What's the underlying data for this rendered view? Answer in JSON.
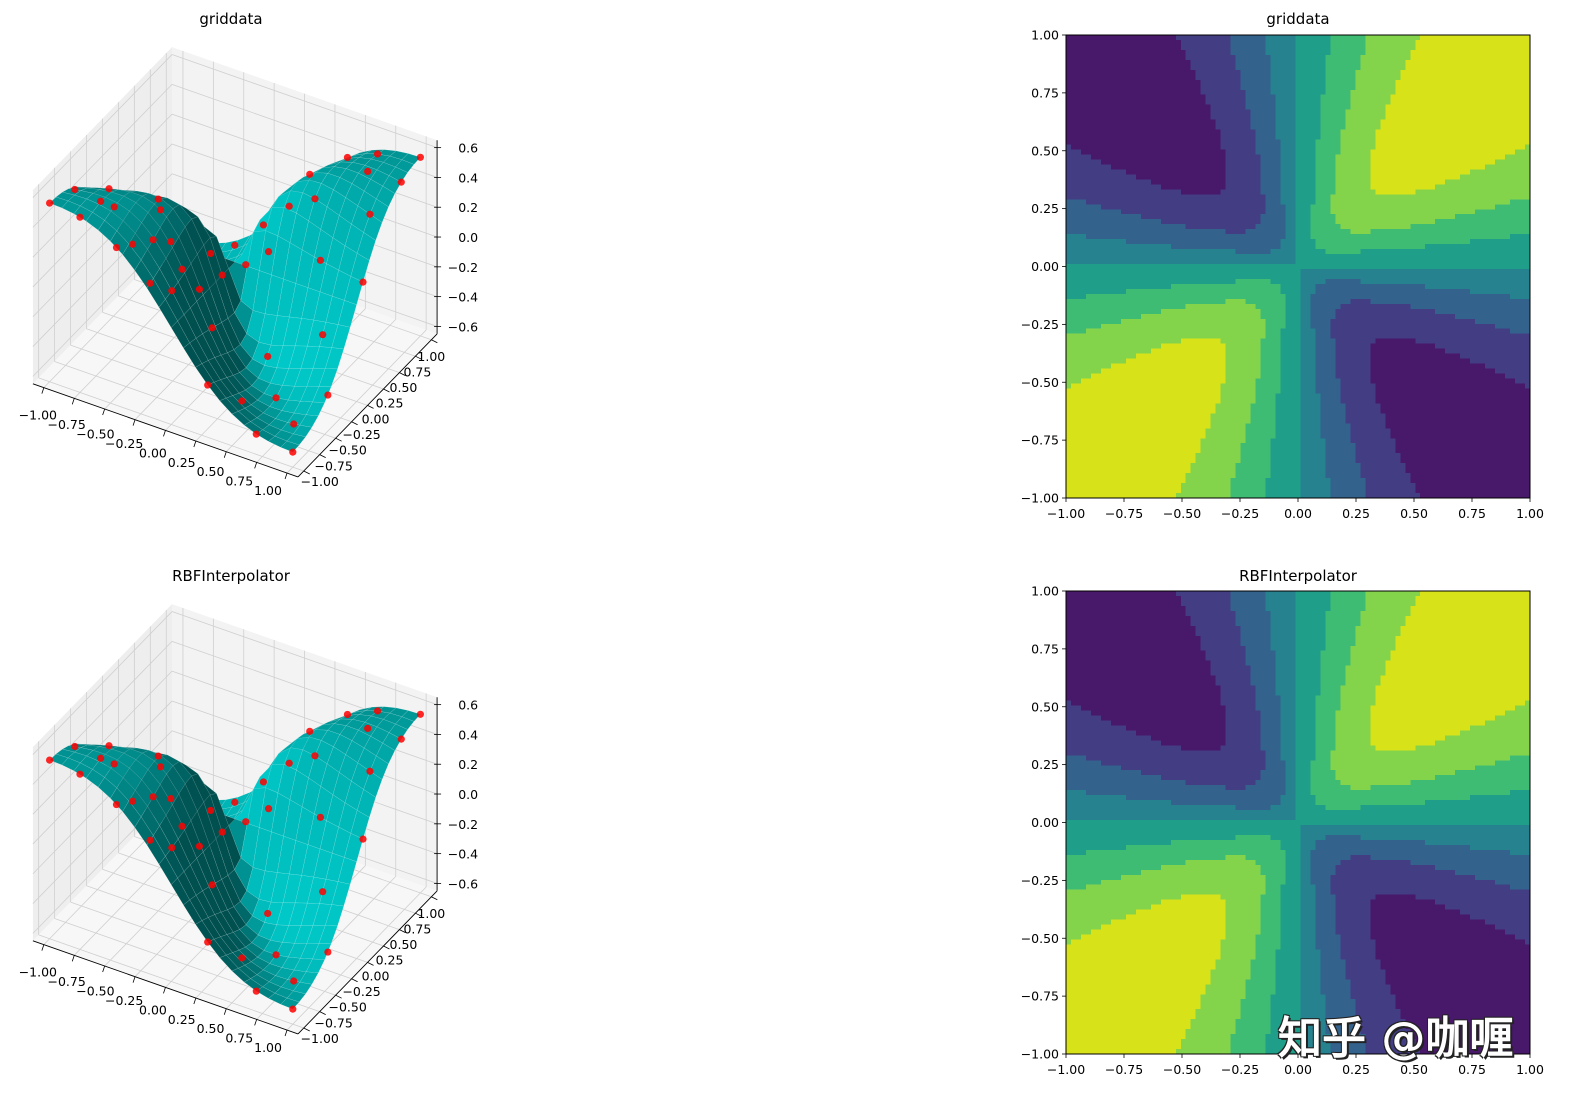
{
  "chart_data": [
    {
      "type": "surface3d",
      "title": "griddata",
      "xlim": [
        -1,
        1
      ],
      "ylim": [
        -1,
        1
      ],
      "zlim": [
        -0.6,
        0.6
      ],
      "xticks": [
        "−1.00",
        "−0.75",
        "−0.50",
        "−0.25",
        "0.00",
        "0.25",
        "0.50",
        "0.75",
        "1.00"
      ],
      "yticks": [
        "−1.00",
        "−0.75",
        "−0.50",
        "−0.25",
        "0.00",
        "0.25",
        "0.50",
        "0.75",
        "1.00"
      ],
      "zticks": [
        "−0.6",
        "−0.4",
        "−0.2",
        "0.0",
        "0.2",
        "0.4",
        "0.6"
      ],
      "surface_color": "#00bfbf",
      "point_color": "#ff0000",
      "samples": [
        [
          -1,
          -1
        ],
        [
          -0.75,
          -1
        ],
        [
          -0.45,
          -1
        ],
        [
          -0.2,
          -0.95
        ],
        [
          0.3,
          -1
        ],
        [
          0.7,
          -1
        ],
        [
          1,
          -1
        ],
        [
          -0.95,
          -0.7
        ],
        [
          -0.6,
          -0.75
        ],
        [
          -0.1,
          -0.8
        ],
        [
          0.45,
          -0.75
        ],
        [
          0.85,
          -0.7
        ],
        [
          -0.8,
          -0.45
        ],
        [
          -0.35,
          -0.5
        ],
        [
          0.1,
          -0.55
        ],
        [
          0.6,
          -0.5
        ],
        [
          1,
          -0.45
        ],
        [
          -1,
          -0.2
        ],
        [
          -0.5,
          -0.25
        ],
        [
          0,
          -0.2
        ],
        [
          0.4,
          -0.25
        ],
        [
          0.8,
          -0.15
        ],
        [
          -0.7,
          0.05
        ],
        [
          -0.2,
          0.0
        ],
        [
          0.25,
          0.05
        ],
        [
          0.65,
          0.1
        ],
        [
          1,
          0.1
        ],
        [
          -1,
          0.3
        ],
        [
          -0.45,
          0.3
        ],
        [
          0.05,
          0.35
        ],
        [
          0.5,
          0.3
        ],
        [
          0.9,
          0.4
        ],
        [
          -0.75,
          0.6
        ],
        [
          -0.2,
          0.55
        ],
        [
          0.3,
          0.6
        ],
        [
          0.75,
          0.65
        ],
        [
          1,
          0.7
        ],
        [
          -1,
          0.9
        ],
        [
          -0.5,
          0.95
        ],
        [
          0,
          0.85
        ],
        [
          0.4,
          1
        ],
        [
          0.7,
          0.9
        ],
        [
          1,
          1
        ]
      ]
    },
    {
      "type": "contour",
      "title": "griddata",
      "xlim": [
        -1,
        1
      ],
      "ylim": [
        -1,
        1
      ],
      "xticks": [
        "−1.00",
        "−0.75",
        "−0.50",
        "−0.25",
        "0.00",
        "0.25",
        "0.50",
        "0.75",
        "1.00"
      ],
      "yticks": [
        "−1.00",
        "−0.75",
        "−0.50",
        "−0.25",
        "0.00",
        "0.25",
        "0.50",
        "0.75",
        "1.00"
      ],
      "levels": [
        -0.6,
        -0.45,
        -0.3,
        -0.15,
        0,
        0.15,
        0.3,
        0.45,
        0.6
      ],
      "colors": [
        "#48186a",
        "#433d84",
        "#33638d",
        "#26828e",
        "#1f9e89",
        "#3fbc73",
        "#84d44b",
        "#d8e219"
      ]
    },
    {
      "type": "surface3d",
      "title": "RBFInterpolator",
      "xlim": [
        -1,
        1
      ],
      "ylim": [
        -1,
        1
      ],
      "zlim": [
        -0.6,
        0.6
      ],
      "xticks": [
        "−1.00",
        "−0.75",
        "−0.50",
        "−0.25",
        "0.00",
        "0.25",
        "0.50",
        "0.75",
        "1.00"
      ],
      "yticks": [
        "−1.00",
        "−0.75",
        "−0.50",
        "−0.25",
        "0.00",
        "0.25",
        "0.50",
        "0.75",
        "1.00"
      ],
      "zticks": [
        "−0.6",
        "−0.4",
        "−0.2",
        "0.0",
        "0.2",
        "0.4",
        "0.6"
      ],
      "surface_color": "#00bfbf",
      "point_color": "#ff0000",
      "samples": [
        [
          -1,
          -1
        ],
        [
          -0.75,
          -1
        ],
        [
          -0.45,
          -1
        ],
        [
          -0.2,
          -0.95
        ],
        [
          0.3,
          -1
        ],
        [
          0.7,
          -1
        ],
        [
          1,
          -1
        ],
        [
          -0.95,
          -0.7
        ],
        [
          -0.6,
          -0.75
        ],
        [
          -0.1,
          -0.8
        ],
        [
          0.45,
          -0.75
        ],
        [
          0.85,
          -0.7
        ],
        [
          -0.8,
          -0.45
        ],
        [
          -0.35,
          -0.5
        ],
        [
          0.1,
          -0.55
        ],
        [
          0.6,
          -0.5
        ],
        [
          1,
          -0.45
        ],
        [
          -1,
          -0.2
        ],
        [
          -0.5,
          -0.25
        ],
        [
          0,
          -0.2
        ],
        [
          0.4,
          -0.25
        ],
        [
          0.8,
          -0.15
        ],
        [
          -0.7,
          0.05
        ],
        [
          -0.2,
          0.0
        ],
        [
          0.25,
          0.05
        ],
        [
          0.65,
          0.1
        ],
        [
          1,
          0.1
        ],
        [
          -1,
          0.3
        ],
        [
          -0.45,
          0.3
        ],
        [
          0.05,
          0.35
        ],
        [
          0.5,
          0.3
        ],
        [
          0.9,
          0.4
        ],
        [
          -0.75,
          0.6
        ],
        [
          -0.2,
          0.55
        ],
        [
          0.3,
          0.6
        ],
        [
          0.75,
          0.65
        ],
        [
          1,
          0.7
        ],
        [
          -1,
          0.9
        ],
        [
          -0.5,
          0.95
        ],
        [
          0,
          0.85
        ],
        [
          0.4,
          1
        ],
        [
          0.7,
          0.9
        ],
        [
          1,
          1
        ]
      ]
    },
    {
      "type": "contour",
      "title": "RBFInterpolator",
      "xlim": [
        -1,
        1
      ],
      "ylim": [
        -1,
        1
      ],
      "xticks": [
        "−1.00",
        "−0.75",
        "−0.50",
        "−0.25",
        "0.00",
        "0.25",
        "0.50",
        "0.75",
        "1.00"
      ],
      "yticks": [
        "−1.00",
        "−0.75",
        "−0.50",
        "−0.25",
        "0.00",
        "0.25",
        "0.50",
        "0.75",
        "1.00"
      ],
      "levels": [
        -0.6,
        -0.45,
        -0.3,
        -0.15,
        0,
        0.15,
        0.3,
        0.45,
        0.6
      ],
      "colors": [
        "#48186a",
        "#433d84",
        "#33638d",
        "#26828e",
        "#1f9e89",
        "#3fbc73",
        "#84d44b",
        "#d8e219"
      ]
    }
  ],
  "watermark": "知乎 @咖喱"
}
